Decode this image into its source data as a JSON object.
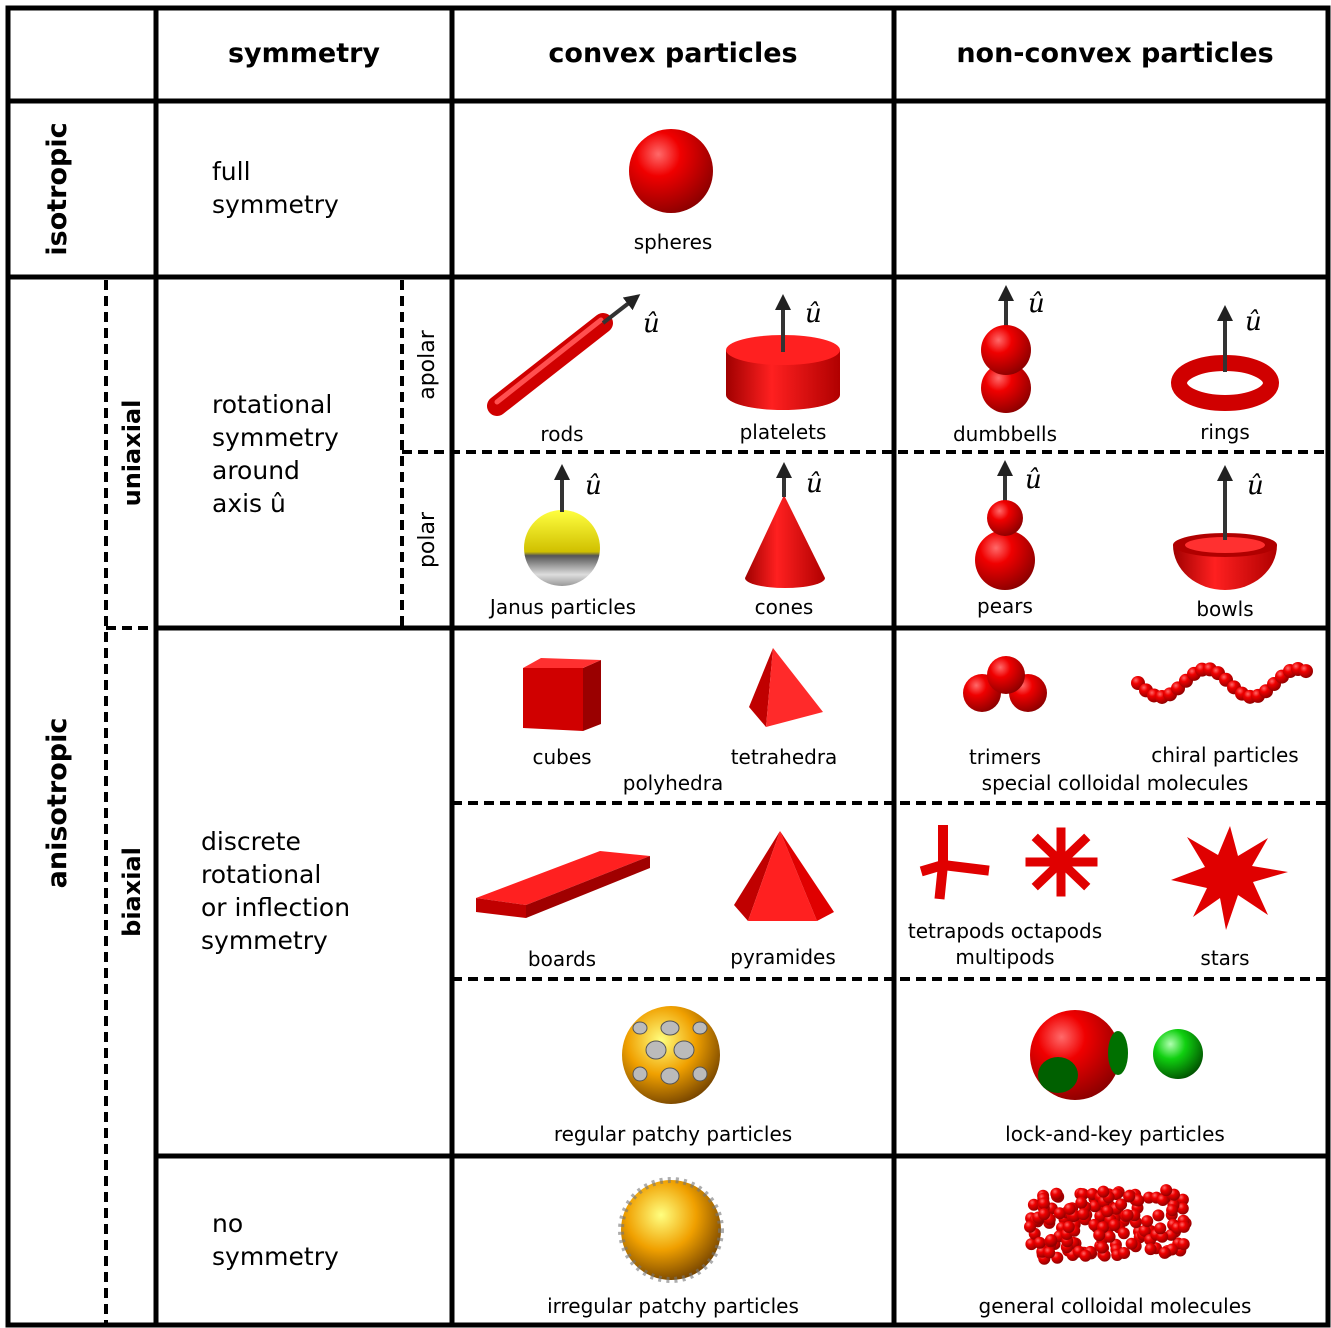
{
  "header": [
    "symmetry",
    "convex particles",
    "non-convex particles"
  ],
  "row_labels": {
    "isotropic": "isotropic",
    "anisotropic": "anisotropic",
    "uniaxial": "uniaxial",
    "biaxial": "biaxial",
    "apolar": "apolar",
    "polar": "polar"
  },
  "symmetry": {
    "full": [
      "full",
      "symmetry"
    ],
    "rotational": [
      "rotational",
      "symmetry",
      "around",
      "axis û"
    ],
    "discrete": [
      "discrete",
      "rotational",
      "or inflection",
      "symmetry"
    ],
    "none": [
      "no",
      "symmetry"
    ]
  },
  "axis_symbol": "û",
  "particles": [
    "spheres",
    "rods",
    "platelets",
    "dumbbells",
    "rings",
    "Janus particles",
    "cones",
    "pears",
    "bowls",
    "cubes",
    "tetrahedra",
    "trimers",
    "chiral particles",
    "boards",
    "pyramides",
    "tetrapods octapods",
    "multipods",
    "stars",
    "regular patchy particles",
    "lock-and-key particles",
    "irregular patchy particles",
    "general colloidal molecules"
  ],
  "groups": [
    "polyhedra",
    "special colloidal molecules"
  ]
}
